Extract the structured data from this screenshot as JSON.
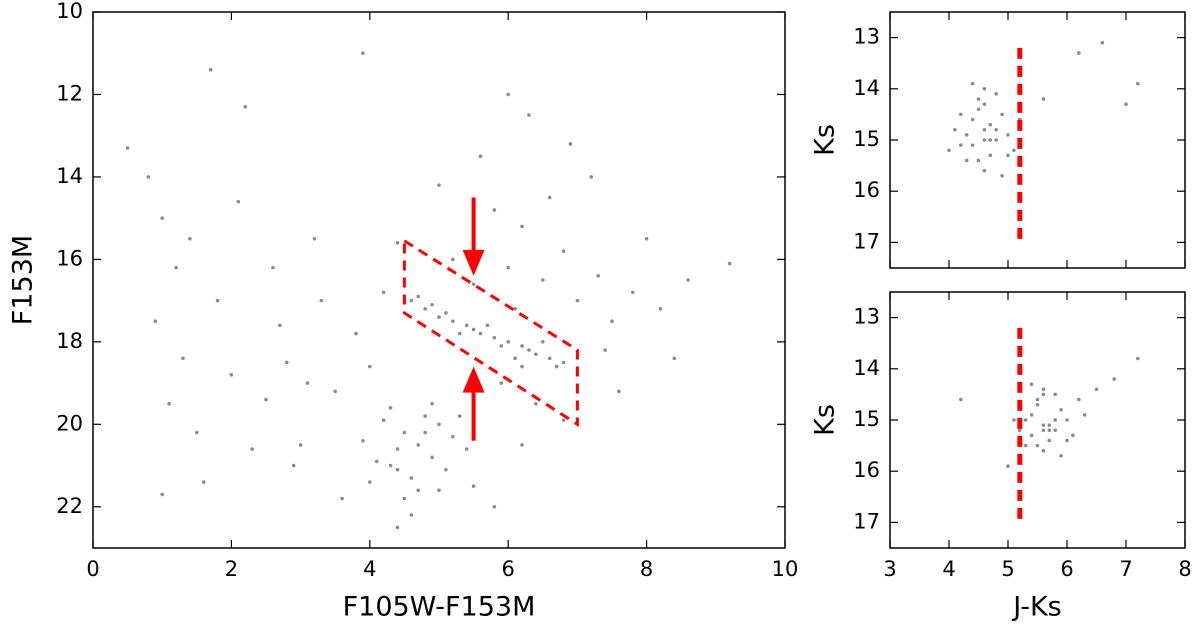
{
  "chart_data": [
    {
      "type": "scatter",
      "xlabel": "F105W-F153M",
      "ylabel": "F153M",
      "xlim": [
        0,
        10
      ],
      "ylim": [
        23,
        10
      ],
      "xticks": [
        0,
        2,
        4,
        6,
        8,
        10
      ],
      "yticks": [
        10,
        12,
        14,
        16,
        18,
        20,
        22
      ],
      "series": [
        {
          "color": "#000000",
          "x": [
            4.6,
            4.8,
            5.0,
            5.2,
            5.4,
            5.6,
            5.8,
            6.0,
            6.2,
            6.4,
            6.6,
            6.8,
            4.7,
            5.1,
            5.5,
            5.9,
            6.3,
            6.7,
            5.3,
            6.1,
            4.9,
            5.7,
            6.5,
            6.2,
            4.7,
            4.5,
            4.9,
            4.3,
            5.0,
            4.6,
            4.8,
            4.4,
            5.2,
            4.1,
            4.7,
            5.1,
            4.2,
            4.9,
            4.5,
            5.3,
            4.0,
            4.6,
            5.4,
            3.9,
            4.8,
            4.4,
            5.0,
            4.3,
            5.5,
            6.0,
            6.5,
            7.0,
            6.2,
            5.8,
            6.8,
            7.3,
            5.2,
            6.6,
            7.5,
            7.8,
            8.2,
            5.6,
            6.9,
            6.3,
            7.2,
            8.0,
            8.6,
            9.2,
            7.0,
            7.6,
            6.4,
            5.9,
            6.8,
            5.5,
            6.1,
            7.4,
            8.4,
            6.0,
            5.0,
            4.4,
            4.2,
            3.8,
            4.0,
            3.5,
            3.3,
            3.0,
            3.6,
            2.8,
            5.5,
            6.2,
            5.8,
            4.4,
            1.0,
            1.2,
            0.9,
            1.3,
            1.1,
            1.5,
            1.8,
            1.4,
            2.0,
            2.3,
            2.6,
            2.1,
            0.8,
            1.6,
            2.5,
            2.9,
            3.2,
            1.7,
            3.9,
            0.5,
            1.0,
            2.2,
            2.7,
            3.1
          ],
          "y": [
            17.0,
            17.2,
            17.4,
            17.5,
            17.6,
            17.8,
            17.9,
            18.0,
            18.1,
            18.3,
            18.4,
            18.5,
            16.9,
            17.3,
            17.7,
            18.1,
            18.2,
            18.6,
            17.8,
            18.4,
            17.1,
            17.6,
            18.0,
            18.6,
            20.5,
            20.2,
            20.8,
            21.0,
            20.0,
            21.3,
            19.8,
            20.6,
            20.3,
            20.9,
            21.6,
            21.1,
            19.9,
            19.5,
            21.8,
            19.8,
            21.4,
            22.2,
            20.6,
            20.4,
            20.2,
            21.1,
            21.6,
            19.6,
            15.8,
            16.2,
            16.5,
            17.0,
            15.2,
            14.8,
            15.8,
            16.4,
            16.0,
            14.5,
            17.5,
            16.8,
            17.2,
            13.5,
            13.2,
            12.5,
            14.0,
            15.5,
            16.5,
            16.1,
            18.8,
            19.2,
            19.5,
            19.0,
            19.9,
            16.6,
            17.2,
            18.2,
            18.4,
            12.0,
            14.2,
            15.6,
            16.8,
            17.8,
            18.6,
            19.2,
            17.0,
            20.5,
            21.8,
            18.5,
            21.5,
            20.5,
            22.0,
            22.5,
            15.0,
            16.2,
            17.5,
            18.4,
            19.5,
            20.2,
            17.0,
            15.5,
            18.8,
            20.6,
            16.2,
            14.6,
            14.0,
            21.4,
            19.4,
            21.0,
            15.5,
            11.4,
            11.0,
            13.3,
            21.7,
            12.3,
            17.6,
            19.0
          ]
        }
      ],
      "region": {
        "color": "#ff0000",
        "x": [
          4.5,
          7.0,
          7.0,
          4.5
        ],
        "y": [
          15.55,
          18.2,
          20.0,
          17.3
        ]
      },
      "arrows": [
        {
          "color": "#ff0000",
          "x": 5.5,
          "y": [
            14.5,
            16.4
          ]
        },
        {
          "color": "#ff0000",
          "x": 5.5,
          "y": [
            20.4,
            18.6
          ]
        }
      ]
    },
    {
      "type": "scatter",
      "ylabel": "Ks",
      "xlim": [
        3,
        8
      ],
      "ylim": [
        17.5,
        12.5
      ],
      "xticks": [
        3,
        4,
        5,
        6,
        7,
        8
      ],
      "xticklabels": false,
      "yticks": [
        13,
        14,
        15,
        16,
        17
      ],
      "series": [
        {
          "color": "#000000",
          "x": [
            4.6,
            4.4,
            4.8,
            4.5,
            4.7,
            4.3,
            4.9,
            4.6,
            4.2,
            5.0,
            4.4,
            4.8,
            4.5,
            4.7,
            4.1,
            5.1,
            4.6,
            4.3,
            4.9,
            4.5,
            4.7,
            5.2,
            4.4,
            4.6,
            4.8,
            4.2,
            5.0,
            4.6,
            6.2,
            6.6,
            7.0,
            7.2,
            5.6,
            4.0
          ],
          "y": [
            14.8,
            14.6,
            15.0,
            14.2,
            15.3,
            14.9,
            14.5,
            15.6,
            15.1,
            14.9,
            13.9,
            14.1,
            15.4,
            14.7,
            14.8,
            15.2,
            14.0,
            15.4,
            15.7,
            14.4,
            15.0,
            14.6,
            15.1,
            14.3,
            14.8,
            14.5,
            15.3,
            15.0,
            13.3,
            13.1,
            14.3,
            13.9,
            14.2,
            15.2
          ]
        }
      ],
      "vline": {
        "color": "#ff0000",
        "x": 5.2,
        "y": [
          13.2,
          17.0
        ]
      }
    },
    {
      "type": "scatter",
      "xlabel": "J-Ks",
      "ylabel": "Ks",
      "xlim": [
        3,
        8
      ],
      "ylim": [
        17.5,
        12.5
      ],
      "xticks": [
        3,
        4,
        5,
        6,
        7,
        8
      ],
      "xticklabels": true,
      "yticks": [
        13,
        14,
        15,
        16,
        17
      ],
      "series": [
        {
          "color": "#000000",
          "x": [
            5.6,
            5.4,
            5.8,
            5.5,
            5.7,
            5.3,
            5.9,
            5.6,
            5.2,
            6.0,
            5.4,
            5.8,
            5.5,
            5.7,
            5.1,
            6.1,
            5.6,
            5.3,
            5.9,
            5.5,
            5.7,
            6.2,
            5.4,
            5.6,
            5.8,
            6.3,
            6.0,
            5.6,
            7.2,
            6.8,
            4.2,
            6.5,
            5.0
          ],
          "y": [
            15.1,
            14.9,
            15.2,
            14.6,
            15.4,
            15.0,
            14.8,
            15.6,
            15.2,
            15.0,
            14.3,
            14.5,
            15.5,
            15.1,
            15.0,
            15.3,
            14.4,
            15.5,
            15.7,
            14.7,
            15.2,
            14.6,
            15.3,
            14.5,
            15.0,
            14.9,
            15.4,
            15.2,
            13.8,
            14.2,
            14.6,
            14.4,
            15.9
          ]
        }
      ],
      "vline": {
        "color": "#ff0000",
        "x": 5.2,
        "y": [
          13.2,
          17.0
        ]
      }
    }
  ]
}
